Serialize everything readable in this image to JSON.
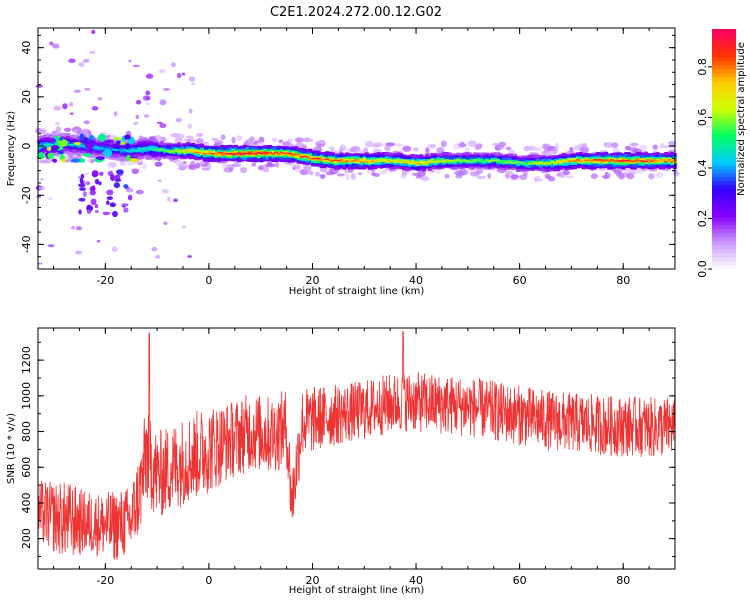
{
  "figure": {
    "title": "C2E1.2024.272.00.12.G02"
  },
  "chart_data": [
    {
      "type": "heatmap",
      "title": "C2E1.2024.272.00.12.G02",
      "xlabel": "Height of straight line (km)",
      "ylabel": "Frequency (Hz)",
      "xlim": [
        -33,
        90
      ],
      "ylim": [
        -50,
        48
      ],
      "x_ticks": [
        -20,
        0,
        20,
        40,
        60,
        80
      ],
      "y_ticks": [
        -40,
        -20,
        0,
        20,
        40
      ],
      "grid": false,
      "ridge": {
        "x": [
          -33,
          -28,
          -24,
          -20,
          -16,
          -12,
          -8,
          -4,
          0,
          5,
          10,
          15,
          20,
          24,
          30,
          35,
          40,
          45,
          50,
          55,
          60,
          65,
          70,
          75,
          80,
          85,
          90
        ],
        "freq_center": [
          0,
          1,
          0,
          -1,
          -2,
          -1,
          -2,
          -2,
          -3,
          -3,
          -3,
          -3,
          -5,
          -6,
          -6,
          -6,
          -7,
          -6,
          -6,
          -6,
          -7,
          -7,
          -6,
          -6,
          -6,
          -6,
          -6
        ],
        "amplitude": [
          0.5,
          0.45,
          0.45,
          0.4,
          0.45,
          0.5,
          0.6,
          0.75,
          0.85,
          0.9,
          0.9,
          0.85,
          0.85,
          0.85,
          0.8,
          0.7,
          0.75,
          0.65,
          0.6,
          0.6,
          0.6,
          0.65,
          0.8,
          0.85,
          0.9,
          0.85,
          0.8
        ]
      },
      "colorbar": {
        "label": "Normalized spectral amplitude",
        "range": [
          0,
          0.95
        ],
        "ticks": [
          0.0,
          0.2,
          0.4,
          0.6,
          0.8
        ],
        "tick_labels": [
          "0.0",
          "0.2",
          "0.4",
          "0.6",
          "0.8"
        ],
        "colors": [
          "#ffffff",
          "#cc99ff",
          "#8800ff",
          "#3300ff",
          "#00ccff",
          "#00ff66",
          "#ccff00",
          "#ffcc00",
          "#ff3300",
          "#ff0066"
        ]
      }
    },
    {
      "type": "line",
      "xlabel": "Height of straight line (km)",
      "ylabel": "SNR (10 * v/v)",
      "xlim": [
        -33,
        90
      ],
      "ylim": [
        30,
        1380
      ],
      "x_ticks": [
        -20,
        0,
        20,
        40,
        60,
        80
      ],
      "y_ticks": [
        200,
        400,
        600,
        800,
        1000,
        1200
      ],
      "grid": false,
      "line_color": "#ee3333",
      "series": [
        {
          "x": [
            -33,
            -30,
            -27,
            -24,
            -21,
            -18,
            -15,
            -13,
            -12,
            -10,
            -7,
            -4,
            0,
            4,
            8,
            12,
            15,
            16,
            18,
            22,
            26,
            30,
            34,
            38,
            42,
            46,
            50,
            54,
            58,
            62,
            66,
            70,
            74,
            78,
            82,
            86,
            90
          ],
          "mean": [
            350,
            320,
            300,
            290,
            280,
            270,
            300,
            500,
            700,
            550,
            600,
            650,
            700,
            750,
            800,
            780,
            820,
            400,
            850,
            880,
            900,
            920,
            950,
            970,
            960,
            950,
            940,
            920,
            900,
            880,
            860,
            850,
            840,
            830,
            830,
            820,
            830
          ],
          "amplitude": [
            180,
            200,
            220,
            180,
            180,
            200,
            200,
            250,
            300,
            250,
            250,
            250,
            250,
            220,
            220,
            220,
            220,
            200,
            200,
            180,
            170,
            170,
            170,
            170,
            170,
            170,
            170,
            170,
            170,
            170,
            170,
            170,
            170,
            170,
            170,
            170,
            170
          ]
        }
      ],
      "peaks": [
        {
          "x": -11.5,
          "y": 1350
        },
        {
          "x": 37.5,
          "y": 1360
        }
      ]
    }
  ]
}
